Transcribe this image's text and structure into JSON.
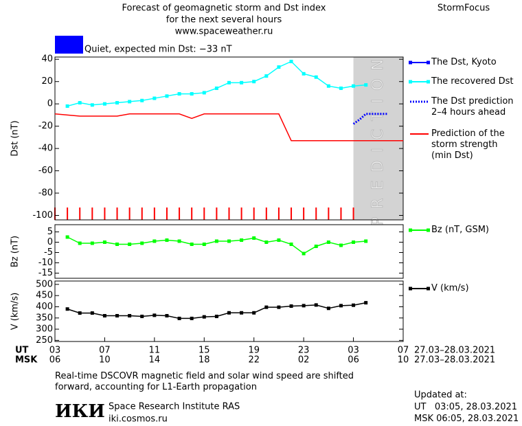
{
  "header": {
    "title_lines": [
      "Forecast of geomagnetic storm and Dst index",
      "for the next several hours",
      "www.spaceweather.ru"
    ],
    "brand": "StormFocus"
  },
  "status": {
    "text": "Quiet, expected min Dst: −33 nT",
    "color": "#0000ff"
  },
  "chart_data": [
    {
      "type": "line",
      "ylabel": "Dst (nT)",
      "xlim": [
        0,
        28
      ],
      "ylim": [
        -104,
        42
      ],
      "yticks": [
        40,
        20,
        0,
        -20,
        -40,
        -60,
        -80,
        -100
      ],
      "annotation": "PREDICTION",
      "shaded_xrange": [
        24,
        28
      ],
      "shade_color": "#d3d3d3",
      "series": [
        {
          "name": "The Dst, Kyoto",
          "color": "#0000ff",
          "marker": "square",
          "x": [],
          "values": []
        },
        {
          "name": "The recovered Dst",
          "color": "#00ffff",
          "marker": "square",
          "x": [
            1,
            2,
            3,
            4,
            5,
            6,
            7,
            8,
            9,
            10,
            11,
            12,
            13,
            14,
            15,
            16,
            17,
            18,
            19,
            20,
            21,
            22,
            23,
            24,
            25
          ],
          "values": [
            -2,
            1,
            -1,
            0,
            1,
            2,
            3,
            5,
            7,
            9,
            9,
            10,
            14,
            19,
            19,
            20,
            25,
            33,
            38,
            27,
            24,
            16,
            14,
            16,
            17
          ]
        },
        {
          "name": "The Dst prediction\n2–4 hours ahead",
          "color": "#0000ff",
          "dash": "dotted",
          "x": [
            24,
            24.5,
            25,
            26,
            26.8
          ],
          "values": [
            -18,
            -14,
            -9,
            -9,
            -9
          ]
        },
        {
          "name": "Prediction of the\nstorm strength\n(min Dst)",
          "color": "#ff0000",
          "x": [
            0,
            2,
            5,
            6,
            10,
            11,
            12,
            18,
            19,
            28
          ],
          "values": [
            -9,
            -11,
            -11,
            -9,
            -9,
            -13,
            -9,
            -9,
            -33,
            -33
          ]
        }
      ]
    },
    {
      "type": "line",
      "ylabel": "Bz (nT)",
      "xlim": [
        0,
        28
      ],
      "ylim": [
        -17.5,
        8.5
      ],
      "yticks": [
        5,
        0,
        -5,
        -10,
        -15
      ],
      "series": [
        {
          "name": "Bz (nT, GSM)",
          "color": "#00ff00",
          "marker": "square",
          "x": [
            1,
            2,
            3,
            4,
            5,
            6,
            7,
            8,
            9,
            10,
            11,
            12,
            13,
            14,
            15,
            16,
            17,
            18,
            19,
            20,
            21,
            22,
            23,
            24,
            25
          ],
          "values": [
            2.5,
            -0.5,
            -0.5,
            0,
            -1,
            -1,
            -0.5,
            0.5,
            1,
            0.5,
            -1,
            -1,
            0.5,
            0.5,
            1,
            2,
            0,
            1,
            -1,
            -5.5,
            -2,
            0,
            -1.5,
            0,
            0.5
          ]
        }
      ]
    },
    {
      "type": "line",
      "ylabel": "V (km/s)",
      "xlim": [
        0,
        28
      ],
      "ylim": [
        245,
        515
      ],
      "yticks": [
        500,
        450,
        400,
        350,
        300,
        250
      ],
      "xlabel": "UT",
      "x2label": "MSK",
      "date_range": "27.03–28.03.2021",
      "xticks": [
        {
          "value": 0,
          "label": "03"
        },
        {
          "value": 4,
          "label": "07"
        },
        {
          "value": 8,
          "label": "11"
        },
        {
          "value": 12,
          "label": "15"
        },
        {
          "value": 16,
          "label": "19"
        },
        {
          "value": 20,
          "label": "23"
        },
        {
          "value": 24,
          "label": "03"
        },
        {
          "value": 28,
          "label": "07"
        }
      ],
      "x2ticklabels": [
        "06",
        "10",
        "14",
        "18",
        "22",
        "02",
        "06",
        "10"
      ],
      "series": [
        {
          "name": "V (km/s)",
          "color": "#000000",
          "marker": "square",
          "x": [
            1,
            2,
            3,
            4,
            5,
            6,
            7,
            8,
            9,
            10,
            11,
            12,
            13,
            14,
            15,
            16,
            17,
            18,
            19,
            20,
            21,
            22,
            23,
            24,
            25
          ],
          "values": [
            390,
            372,
            372,
            360,
            360,
            360,
            357,
            362,
            360,
            348,
            348,
            355,
            357,
            373,
            373,
            373,
            398,
            398,
            403,
            405,
            408,
            393,
            405,
            407,
            418
          ]
        }
      ]
    }
  ],
  "footer": {
    "note": "Real-time DSCOVR magnetic field and solar wind speed are shifted\nforward, accounting for L1-Earth propagation",
    "logo": "ИКИ",
    "institute": "Space Research Institute RAS",
    "url": "iki.cosmos.ru",
    "updated_label": "Updated at:",
    "updated_ut": "UT   03:05, 28.03.2021",
    "updated_msk": "MSK 06:05, 28.03.2021"
  }
}
